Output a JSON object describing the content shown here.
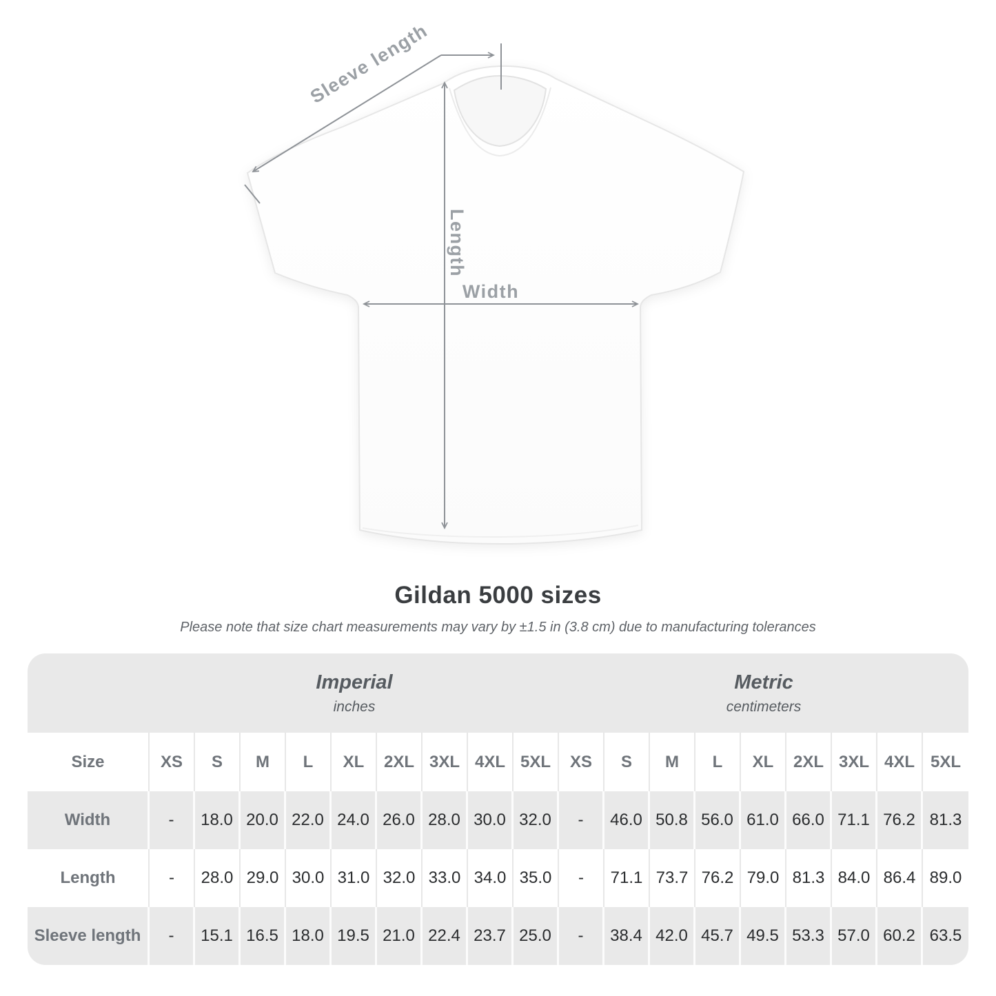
{
  "diagram": {
    "sleeve_length_label": "Sleeve length",
    "length_label": "Length",
    "width_label": "Width"
  },
  "title": "Gildan 5000 sizes",
  "subtitle": "Please note that size chart measurements may vary by ±1.5 in (3.8 cm) due to manufacturing tolerances",
  "colors": {
    "table_band": "#e9e9e9",
    "row_alt_gray": "#e9e9e9",
    "row_white": "#ffffff",
    "header_label_text": "#6f747a",
    "value_text": "#2a2c2e",
    "diagram_label": "#9ba0a5",
    "arrow": "#8e9297"
  },
  "chart_data": {
    "type": "table",
    "title": "Gildan 5000 sizes",
    "note": "Please note that size chart measurements may vary by ±1.5 in (3.8 cm) due to manufacturing tolerances",
    "size_label": "Size",
    "groups": [
      {
        "name": "Imperial",
        "unit": "inches"
      },
      {
        "name": "Metric",
        "unit": "centimeters"
      }
    ],
    "sizes": [
      "XS",
      "S",
      "M",
      "L",
      "XL",
      "2XL",
      "3XL",
      "4XL",
      "5XL"
    ],
    "rows": [
      {
        "label": "Width",
        "imperial": [
          "-",
          "18.0",
          "20.0",
          "22.0",
          "24.0",
          "26.0",
          "28.0",
          "30.0",
          "32.0"
        ],
        "metric": [
          "-",
          "46.0",
          "50.8",
          "56.0",
          "61.0",
          "66.0",
          "71.1",
          "76.2",
          "81.3"
        ]
      },
      {
        "label": "Length",
        "imperial": [
          "-",
          "28.0",
          "29.0",
          "30.0",
          "31.0",
          "32.0",
          "33.0",
          "34.0",
          "35.0"
        ],
        "metric": [
          "-",
          "71.1",
          "73.7",
          "76.2",
          "79.0",
          "81.3",
          "84.0",
          "86.4",
          "89.0"
        ]
      },
      {
        "label": "Sleeve length",
        "imperial": [
          "-",
          "15.1",
          "16.5",
          "18.0",
          "19.5",
          "21.0",
          "22.4",
          "23.7",
          "25.0"
        ],
        "metric": [
          "-",
          "38.4",
          "42.0",
          "45.7",
          "49.5",
          "53.3",
          "57.0",
          "60.2",
          "63.5"
        ]
      }
    ]
  }
}
